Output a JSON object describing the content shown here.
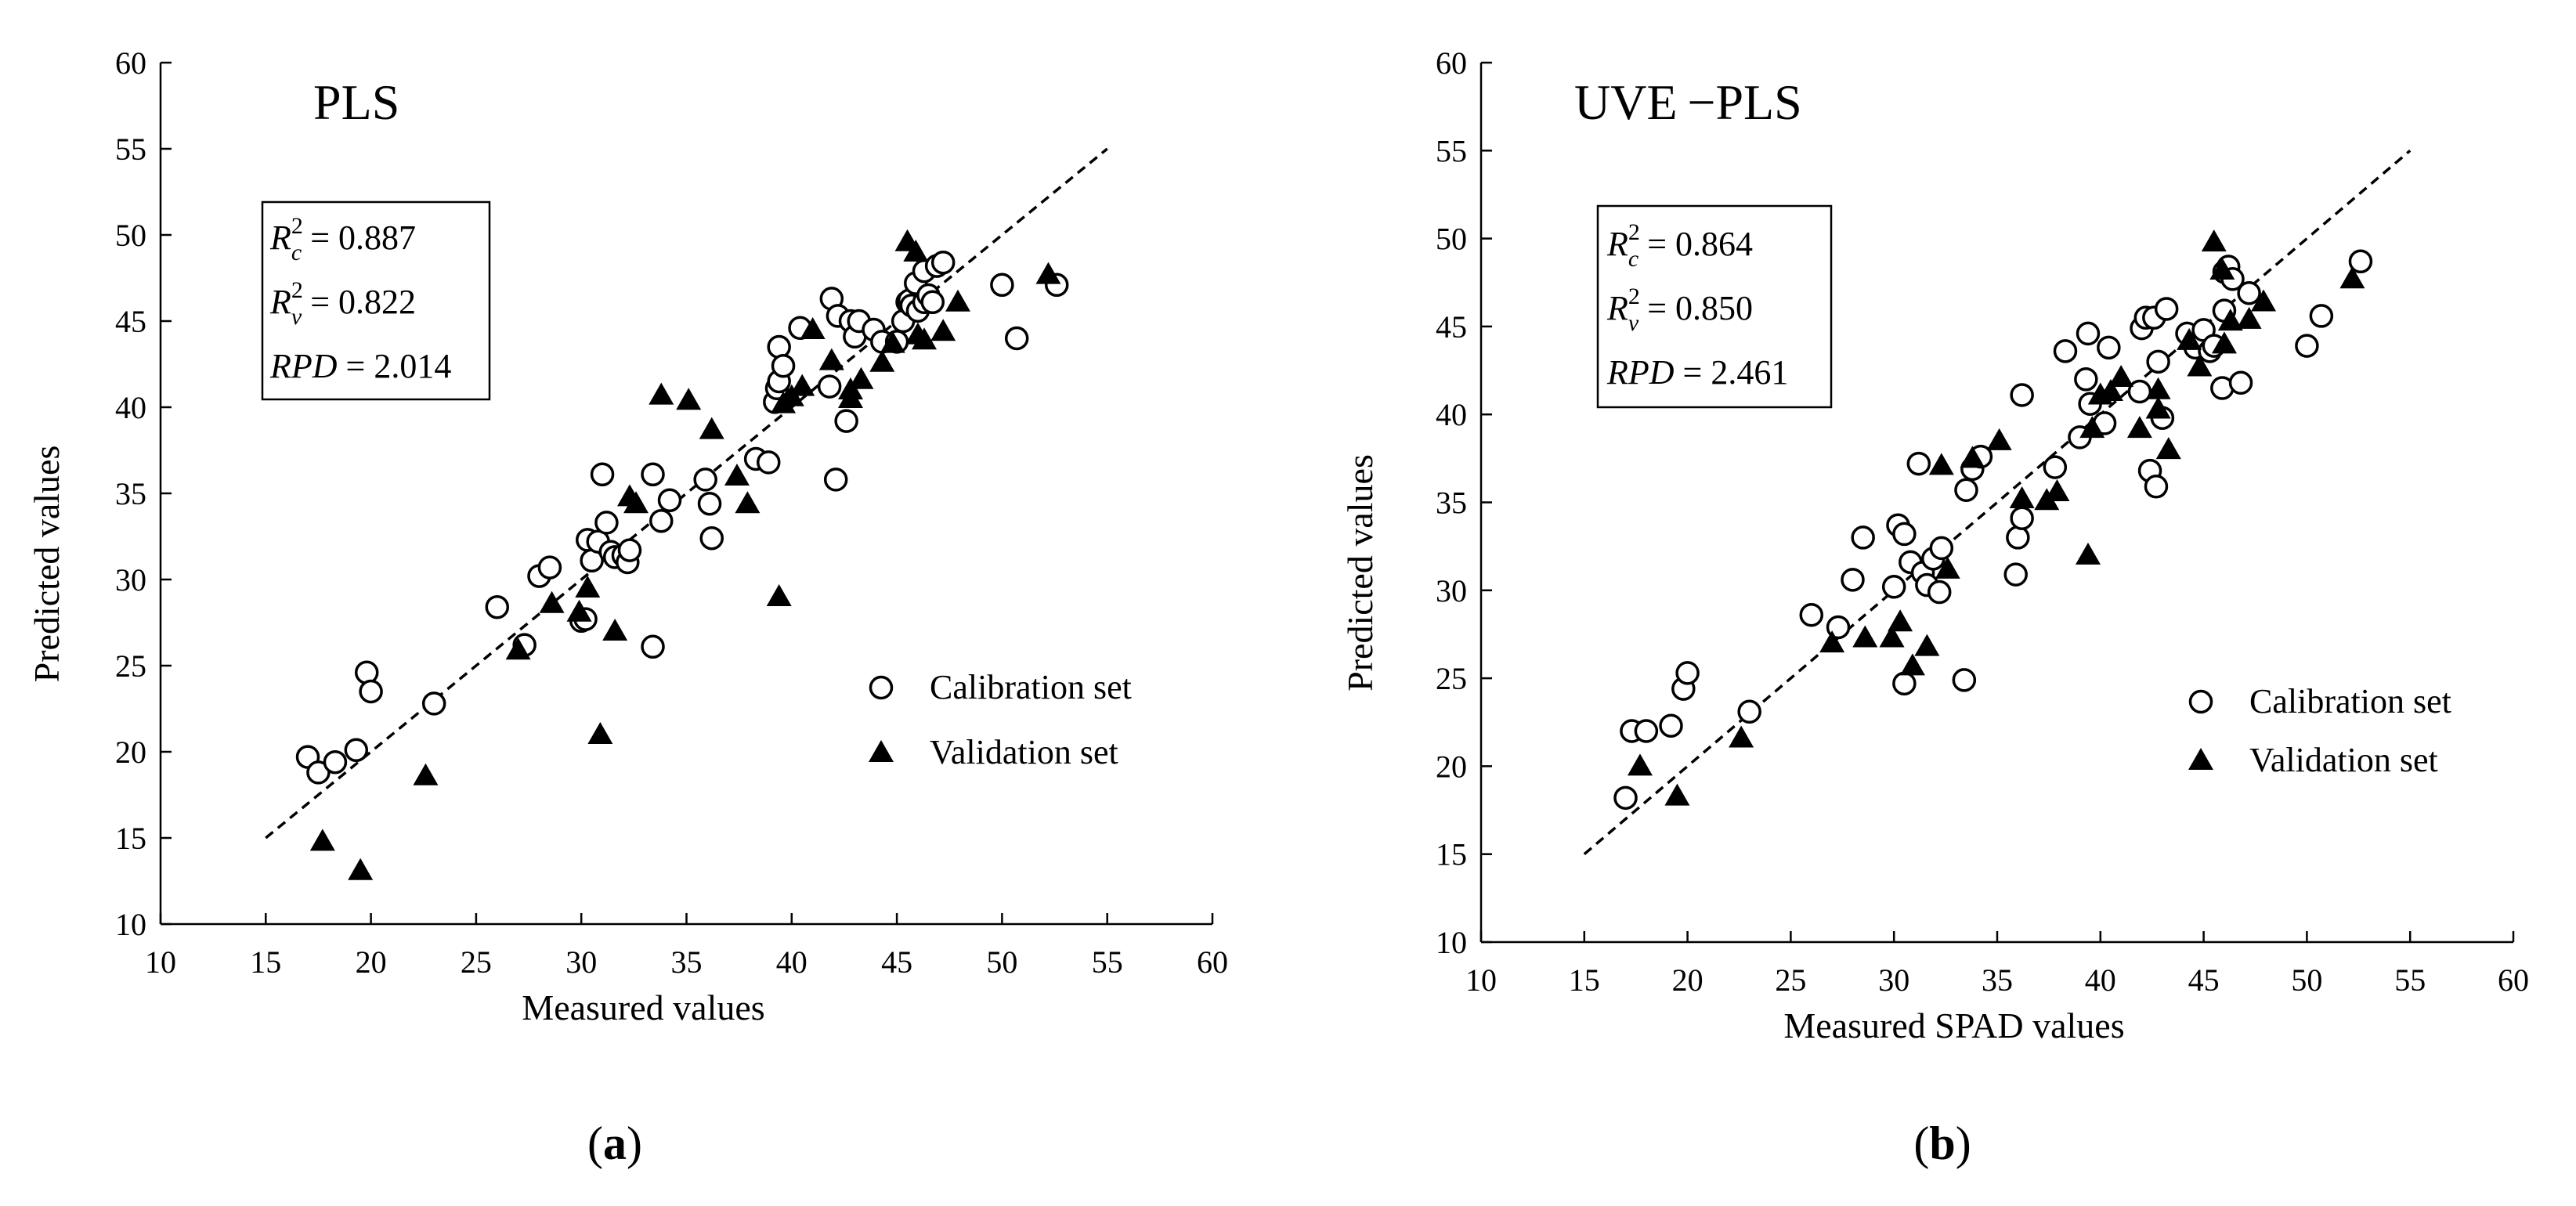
{
  "chart_data": [
    {
      "type": "scatter",
      "title": "PLS",
      "xlabel": "Measured values",
      "ylabel": "Predicted values",
      "xlim": [
        10,
        60
      ],
      "ylim": [
        10,
        60
      ],
      "xticks": [
        "10",
        "15",
        "20",
        "25",
        "30",
        "35",
        "40",
        "45",
        "50",
        "55",
        "60"
      ],
      "yticks": [
        "10",
        "15",
        "20",
        "25",
        "30",
        "35",
        "40",
        "45",
        "50",
        "55",
        "60"
      ],
      "caption_letter": "a",
      "reference_line": {
        "x": [
          15,
          55
        ],
        "y": [
          15,
          55
        ]
      },
      "stats": [
        {
          "sym": "R",
          "sub": "c",
          "sup": "2",
          "value": "0.887"
        },
        {
          "sym": "R",
          "sub": "v",
          "sup": "2",
          "value": "0.822"
        },
        {
          "sym": "RPD",
          "sub": "",
          "sup": "",
          "value": "2.014"
        }
      ],
      "legend": [
        "Calibration set",
        "Validation set"
      ],
      "series": [
        {
          "name": "Calibration set",
          "marker": "circle",
          "x": [
            17,
            17.5,
            18.3,
            19.3,
            19.8,
            20,
            23,
            26,
            27.3,
            28,
            28.5,
            30,
            30.2,
            30.3,
            30.5,
            30.8,
            31,
            31.2,
            31.4,
            31.6,
            32,
            32.2,
            32.3,
            33.4,
            33.4,
            33.8,
            34.2,
            35.9,
            36.1,
            36.2,
            38.3,
            38.9,
            39.2,
            39.3,
            39.4,
            39.4,
            39.6,
            40.4,
            41.8,
            41.9,
            42.2,
            42.1,
            42.6,
            42.8,
            43,
            43.2,
            43.9,
            44.3,
            45,
            45.3,
            45.5,
            45.6,
            45.7,
            45.9,
            46,
            46.3,
            46.3,
            46.5,
            46.7,
            46.9,
            47.2,
            50,
            50.7,
            52.6
          ],
          "y": [
            19.7,
            18.8,
            19.4,
            20.1,
            24.6,
            23.5,
            22.8,
            28.4,
            26.2,
            30.2,
            30.7,
            27.6,
            27.7,
            32.3,
            31.1,
            32.2,
            36.1,
            33.3,
            31.6,
            31.3,
            31.4,
            31,
            31.7,
            26.1,
            36.1,
            33.4,
            34.6,
            35.8,
            34.4,
            32.4,
            37,
            36.8,
            40.3,
            41.1,
            41.5,
            43.5,
            42.4,
            44.6,
            41.2,
            46.3,
            45.3,
            35.8,
            39.2,
            45,
            44.1,
            45,
            44.5,
            43.8,
            43.8,
            45,
            46.1,
            46.2,
            45.9,
            47.2,
            45.6,
            46.1,
            47.9,
            46.5,
            46.1,
            48.2,
            48.4,
            47.1,
            44,
            47.1
          ]
        },
        {
          "name": "Validation set",
          "marker": "triangle",
          "x": [
            17.7,
            19.5,
            22.6,
            27,
            28.6,
            29.9,
            30.3,
            30.9,
            31.6,
            32.3,
            32.6,
            33.8,
            35.1,
            36.2,
            37.4,
            37.9,
            39.4,
            39.6,
            40,
            40.5,
            41,
            41.9,
            42.8,
            42.8,
            43.3,
            44.3,
            44.8,
            45.5,
            45.9,
            46,
            46.3,
            47.2,
            47.9,
            52.2
          ],
          "y": [
            14.8,
            13.1,
            18.6,
            25.9,
            28.6,
            28.1,
            29.5,
            21,
            27,
            34.8,
            34.4,
            40.7,
            40.4,
            38.7,
            36,
            34.4,
            29,
            40.2,
            40.6,
            41.2,
            44.5,
            42.7,
            40.5,
            41,
            41.6,
            42.6,
            43.7,
            49.6,
            49,
            44.2,
            43.9,
            44.4,
            46.1,
            47.7
          ]
        }
      ]
    },
    {
      "type": "scatter",
      "title": "UVE −PLS",
      "xlabel": "Measured SPAD values",
      "ylabel": "Predicted values",
      "xlim": [
        10,
        60
      ],
      "ylim": [
        10,
        60
      ],
      "xticks": [
        "10",
        "15",
        "20",
        "25",
        "30",
        "35",
        "40",
        "45",
        "50",
        "55",
        "60"
      ],
      "yticks": [
        "10",
        "15",
        "20",
        "25",
        "30",
        "35",
        "40",
        "45",
        "50",
        "55",
        "60"
      ],
      "caption_letter": "b",
      "reference_line": {
        "x": [
          15,
          55
        ],
        "y": [
          15,
          55
        ]
      },
      "stats": [
        {
          "sym": "R",
          "sub": "c",
          "sup": "2",
          "value": "0.864"
        },
        {
          "sym": "R",
          "sub": "v",
          "sup": "2",
          "value": "0.850"
        },
        {
          "sym": "RPD",
          "sub": "",
          "sup": "",
          "value": "2.461"
        }
      ],
      "legend": [
        "Calibration set",
        "Validation set"
      ],
      "series": [
        {
          "name": "Calibration set",
          "marker": "circle",
          "x": [
            17,
            17.3,
            18,
            19.2,
            19.8,
            20,
            23,
            26,
            27.3,
            28,
            28.5,
            30,
            30.2,
            30.5,
            30.5,
            30.8,
            31.2,
            31.4,
            31.6,
            31.9,
            32.2,
            32.3,
            33.4,
            33.5,
            33.8,
            34.2,
            35.9,
            36,
            36.2,
            36.2,
            37.8,
            38.3,
            39,
            39.3,
            39.4,
            39.5,
            40.2,
            40.4,
            41.9,
            42,
            42.2,
            42.4,
            42.6,
            42.7,
            42.8,
            43,
            43.2,
            44.2,
            44.6,
            45,
            45.3,
            45.5,
            45.9,
            46,
            46,
            46.2,
            46.4,
            46.8,
            47.2,
            50,
            50.7,
            52.6
          ],
          "y": [
            18.2,
            22,
            22,
            22.3,
            24.4,
            25.3,
            23.1,
            28.6,
            27.9,
            30.6,
            33,
            30.2,
            33.7,
            24.7,
            33.2,
            31.6,
            37.2,
            31,
            30.3,
            31.8,
            29.9,
            32.4,
            24.9,
            35.7,
            36.9,
            37.6,
            30.9,
            33,
            34.1,
            41.1,
            37,
            43.6,
            38.7,
            42,
            44.6,
            40.6,
            39.5,
            43.8,
            41.3,
            44.9,
            45.5,
            36.8,
            45.5,
            35.9,
            43,
            39.8,
            46,
            44.6,
            43.8,
            44.8,
            43.6,
            43.9,
            41.5,
            45.9,
            48.1,
            48.4,
            47.7,
            41.8,
            46.9,
            43.9,
            45.6,
            48.7
          ]
        },
        {
          "name": "Validation set",
          "marker": "triangle",
          "x": [
            17.7,
            19.5,
            22.6,
            27,
            28.6,
            29.9,
            30.3,
            30.9,
            31.6,
            32.3,
            32.6,
            33.8,
            35.1,
            36.2,
            37.4,
            37.9,
            39.4,
            39.6,
            40,
            40.5,
            41,
            41.9,
            42.8,
            42.8,
            43.3,
            44.3,
            44.8,
            45.5,
            45.9,
            46,
            46.3,
            47.2,
            47.9,
            52.2
          ],
          "y": [
            20,
            18.3,
            21.6,
            27,
            27.3,
            27.3,
            28.2,
            25.7,
            26.8,
            37.1,
            31.2,
            37.5,
            38.5,
            35.2,
            35.1,
            35.6,
            32,
            39.2,
            41.1,
            41.3,
            42.1,
            39.2,
            40.3,
            41.4,
            38,
            44.2,
            42.7,
            49.8,
            48.2,
            44,
            45.3,
            45.4,
            46.4,
            47.7
          ]
        }
      ]
    }
  ]
}
